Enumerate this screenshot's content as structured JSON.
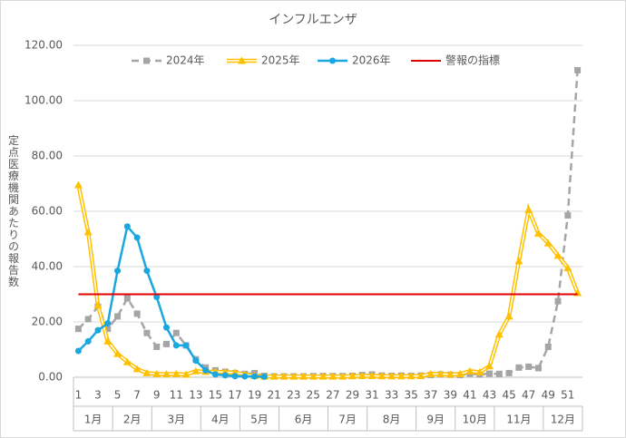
{
  "chart_data": {
    "type": "line",
    "title": "インフルエンザ",
    "y_label": "定点医療機関あたりの報告数",
    "categories": [
      1,
      null,
      3,
      null,
      5,
      null,
      7,
      null,
      9,
      null,
      11,
      null,
      13,
      null,
      15,
      null,
      17,
      null,
      19,
      null,
      21,
      null,
      23,
      null,
      25,
      null,
      27,
      null,
      29,
      null,
      31,
      null,
      33,
      null,
      35,
      null,
      37,
      null,
      39,
      null,
      41,
      null,
      43,
      null,
      45,
      null,
      47,
      null,
      49,
      null,
      51,
      null
    ],
    "months": [
      {
        "label": "1月",
        "span": 4
      },
      {
        "label": "2月",
        "span": 4
      },
      {
        "label": "3月",
        "span": 5
      },
      {
        "label": "4月",
        "span": 4
      },
      {
        "label": "5月",
        "span": 4
      },
      {
        "label": "6月",
        "span": 5
      },
      {
        "label": "7月",
        "span": 4
      },
      {
        "label": "8月",
        "span": 5
      },
      {
        "label": "9月",
        "span": 4
      },
      {
        "label": "10月",
        "span": 4
      },
      {
        "label": "11月",
        "span": 5
      },
      {
        "label": "12月",
        "span": 4
      }
    ],
    "ylim": [
      0,
      120
    ],
    "yticks": [
      {
        "value": 0,
        "label": "0.00"
      },
      {
        "value": 20,
        "label": "20.00"
      },
      {
        "value": 40,
        "label": "40.00"
      },
      {
        "value": 60,
        "label": "60.00"
      },
      {
        "value": 80,
        "label": "80.00"
      },
      {
        "value": 100,
        "label": "100.00"
      },
      {
        "value": 120,
        "label": "120.00"
      }
    ],
    "grid": true,
    "legend": "top",
    "series": [
      {
        "name": "2024年",
        "color": "#a5a5a5",
        "dash": true,
        "marker": "square",
        "values": [
          17.5,
          21,
          25.5,
          17.5,
          22,
          28.5,
          23,
          16,
          11,
          12,
          16,
          11.5,
          6.5,
          3.5,
          2.5,
          2,
          1.5,
          1.2,
          1.5,
          0.5,
          0.3,
          0.3,
          0.3,
          0.3,
          0.4,
          0.4,
          0.4,
          0.4,
          0.5,
          0.8,
          1,
          0.6,
          0.5,
          0.6,
          0.5,
          0.6,
          0.8,
          1,
          0.9,
          0.8,
          1.3,
          1,
          1.3,
          1.2,
          1.5,
          3.5,
          3.8,
          3.3,
          11,
          27.5,
          58.5,
          111
        ]
      },
      {
        "name": "2025年",
        "color": "#ffc000",
        "double": true,
        "marker": "triangle",
        "values": [
          69.5,
          52.5,
          26,
          13,
          8.5,
          5.5,
          3,
          1.5,
          1.2,
          1.1,
          1.2,
          1,
          2.2,
          2,
          2,
          1.8,
          1.7,
          1,
          0.5,
          0.3,
          0.3,
          0.3,
          0.3,
          0.3,
          0.3,
          0.3,
          0.3,
          0.3,
          0.4,
          0.5,
          0.5,
          0.4,
          0.4,
          0.4,
          0.4,
          0.5,
          1.2,
          1.2,
          1,
          1.2,
          2.2,
          1.8,
          4,
          15.5,
          22,
          42,
          60.5,
          52,
          48.5,
          44,
          39.5,
          30.5
        ]
      },
      {
        "name": "2026年",
        "color": "#1aa7e0",
        "marker": "circle",
        "values": [
          9.5,
          13,
          17,
          19.5,
          38.5,
          54.5,
          50.5,
          38.5,
          29,
          18,
          11.5,
          11.5,
          6,
          2.5,
          1,
          0.7,
          0.4,
          0.3,
          0.3,
          0.2,
          null,
          null,
          null,
          null,
          null,
          null,
          null,
          null,
          null,
          null,
          null,
          null,
          null,
          null,
          null,
          null,
          null,
          null,
          null,
          null,
          null,
          null,
          null,
          null,
          null,
          null,
          null,
          null,
          null,
          null,
          null,
          null
        ]
      },
      {
        "name": "警報の指標",
        "color": "#e00000",
        "marker": "none",
        "values": [
          30,
          30,
          30,
          30,
          30,
          30,
          30,
          30,
          30,
          30,
          30,
          30,
          30,
          30,
          30,
          30,
          30,
          30,
          30,
          30,
          30,
          30,
          30,
          30,
          30,
          30,
          30,
          30,
          30,
          30,
          30,
          30,
          30,
          30,
          30,
          30,
          30,
          30,
          30,
          30,
          30,
          30,
          30,
          30,
          30,
          30,
          30,
          30,
          30,
          30,
          30,
          30
        ]
      }
    ]
  }
}
